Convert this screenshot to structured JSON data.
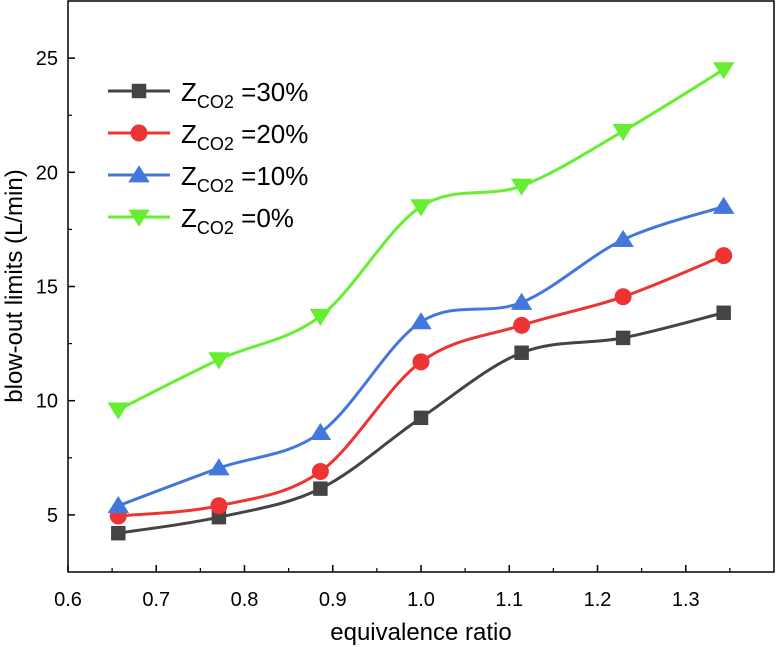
{
  "chart_data": {
    "type": "line",
    "title": "",
    "xlabel": "equivalence ratio",
    "ylabel": "blow-out limits (L/min)",
    "xlim": [
      0.6,
      1.4
    ],
    "ylim": [
      2.5,
      27.5
    ],
    "xticks": [
      0.6,
      0.7,
      0.8,
      0.9,
      1.0,
      1.1,
      1.2,
      1.3
    ],
    "xtick_labels": [
      "0.6",
      "0.7",
      "0.8",
      "0.9",
      "1.0",
      "1.1",
      "1.2",
      "1.3"
    ],
    "yticks": [
      5,
      10,
      15,
      20,
      25
    ],
    "ytick_labels": [
      "5",
      "10",
      "15",
      "20",
      "25"
    ],
    "grid": false,
    "legend_position": "top-left",
    "x": [
      0.657,
      0.771,
      0.886,
      1.0,
      1.114,
      1.229,
      1.343
    ],
    "series": [
      {
        "name_main": "Z",
        "name_sub": "CO2",
        "name_value": " =30%",
        "marker": "square",
        "color": "#444444",
        "values": [
          4.2,
          4.9,
          6.15,
          9.25,
          12.1,
          12.75,
          13.85
        ]
      },
      {
        "name_main": "Z",
        "name_sub": "CO2",
        "name_value": " =20%",
        "marker": "circle",
        "color": "#ee3333",
        "values": [
          4.95,
          5.4,
          6.9,
          11.7,
          13.3,
          14.55,
          16.35
        ]
      },
      {
        "name_main": "Z",
        "name_sub": "CO2",
        "name_value": " =10%",
        "marker": "triangle-up",
        "color": "#4477dd",
        "values": [
          5.4,
          7.05,
          8.6,
          13.45,
          14.3,
          17.05,
          18.5
        ]
      },
      {
        "name_main": "Z",
        "name_sub": "CO2",
        "name_value": " =0%",
        "marker": "triangle-down",
        "color": "#66ee33",
        "values": [
          9.6,
          11.8,
          13.7,
          18.5,
          19.4,
          21.8,
          24.5
        ]
      }
    ]
  }
}
